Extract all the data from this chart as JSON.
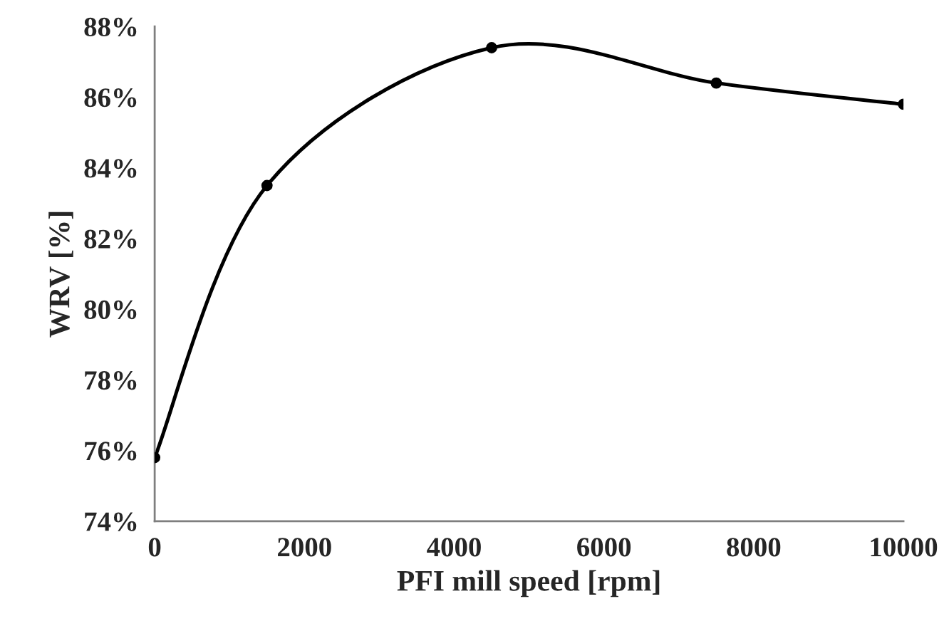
{
  "chart_data": {
    "type": "line",
    "xlabel": "PFI mill speed [rpm]",
    "ylabel": "WRV [%]",
    "x": [
      0,
      1500,
      4500,
      7500,
      10000
    ],
    "series": [
      {
        "color": "#000000",
        "values": [
          75.8,
          83.5,
          87.4,
          86.4,
          85.8
        ]
      }
    ],
    "xlim": [
      0,
      10000
    ],
    "xticks": [
      0,
      2000,
      4000,
      6000,
      8000,
      10000
    ],
    "ylim": [
      74,
      88
    ],
    "yticks": [
      {
        "value": 74,
        "label": "74%"
      },
      {
        "value": 76,
        "label": "76%"
      },
      {
        "value": 78,
        "label": "78%"
      },
      {
        "value": 80,
        "label": "80%"
      },
      {
        "value": 82,
        "label": "82%"
      },
      {
        "value": 84,
        "label": "84%"
      },
      {
        "value": 86,
        "label": "86%"
      },
      {
        "value": 88,
        "label": "88%"
      }
    ],
    "marker": "circle",
    "line_style": "solid",
    "grid": false,
    "legend": false
  }
}
